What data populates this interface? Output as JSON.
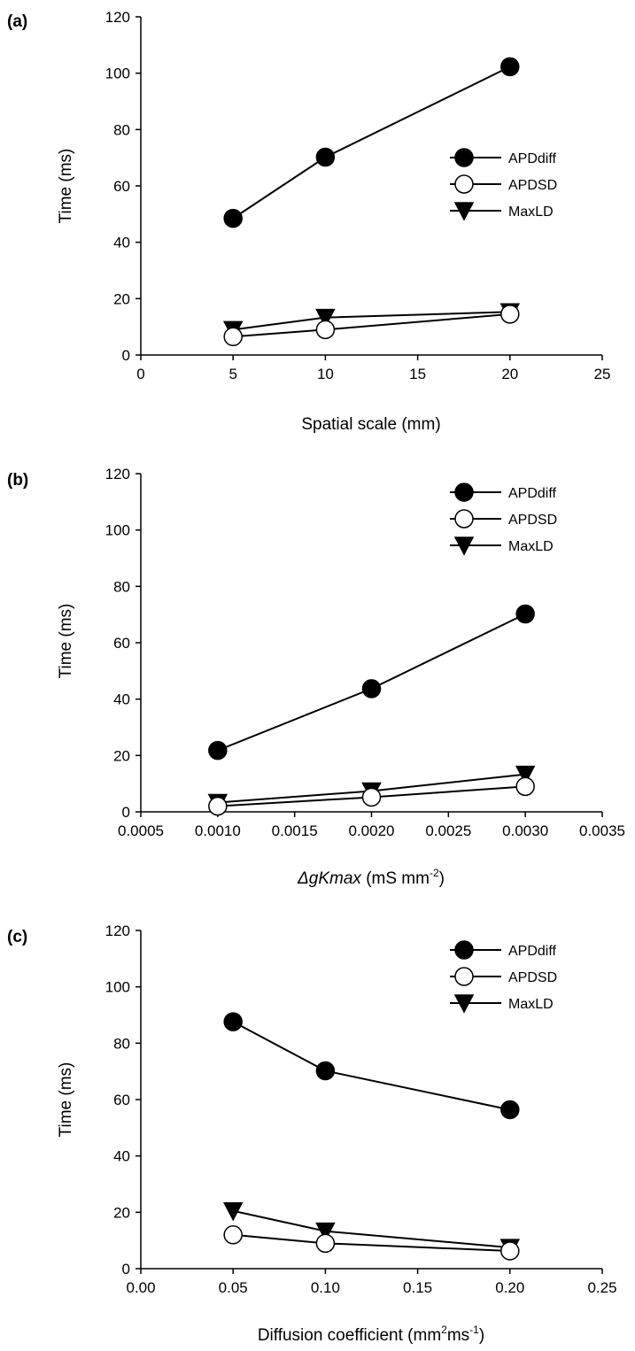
{
  "figure": {
    "background": "#ffffff",
    "ink": "#000000"
  },
  "chart_data": [
    {
      "type": "line",
      "panel_label": "(a)",
      "xlabel": "Spatial scale (mm)",
      "ylabel": "Time (ms)",
      "xlim": [
        0,
        25
      ],
      "ylim": [
        0,
        120
      ],
      "xticks": [
        0,
        5,
        10,
        15,
        20,
        25
      ],
      "xtick_labels": [
        "0",
        "5",
        "10",
        "15",
        "20",
        "25"
      ],
      "yticks": [
        0,
        20,
        40,
        60,
        80,
        100,
        120
      ],
      "ytick_labels": [
        "0",
        "20",
        "40",
        "60",
        "80",
        "100",
        "120"
      ],
      "grid": false,
      "legend_position": "right-middle",
      "series": [
        {
          "name": "APDdiff",
          "marker": "filled-circle",
          "x": [
            5,
            10,
            20
          ],
          "y": [
            48.5,
            70.2,
            102.3
          ]
        },
        {
          "name": "APDSD",
          "marker": "open-circle",
          "x": [
            5,
            10,
            20
          ],
          "y": [
            6.5,
            9.0,
            14.5
          ]
        },
        {
          "name": "MaxLD",
          "marker": "filled-down-triangle",
          "x": [
            5,
            10,
            20
          ],
          "y": [
            9.0,
            13.3,
            15.3
          ]
        }
      ]
    },
    {
      "type": "line",
      "panel_label": "(b)",
      "xlabel_italic": "ΔgKmax",
      "xlabel_unit": " (mS mm",
      "xlabel_sup": "-2",
      "xlabel_close": ")",
      "ylabel": "Time (ms)",
      "xlim": [
        0.0005,
        0.0035
      ],
      "ylim": [
        0,
        120
      ],
      "xticks": [
        0.0005,
        0.001,
        0.0015,
        0.002,
        0.0025,
        0.003,
        0.0035
      ],
      "xtick_labels": [
        "0.0005",
        "0.0010",
        "0.0015",
        "0.0020",
        "0.0025",
        "0.0030",
        "0.0035"
      ],
      "yticks": [
        0,
        20,
        40,
        60,
        80,
        100,
        120
      ],
      "ytick_labels": [
        "0",
        "20",
        "40",
        "60",
        "80",
        "100",
        "120"
      ],
      "grid": false,
      "legend_position": "top-right",
      "series": [
        {
          "name": "APDdiff",
          "marker": "filled-circle",
          "x": [
            0.001,
            0.002,
            0.003
          ],
          "y": [
            21.8,
            43.7,
            70.2
          ]
        },
        {
          "name": "APDSD",
          "marker": "open-circle",
          "x": [
            0.001,
            0.002,
            0.003
          ],
          "y": [
            2.0,
            5.2,
            9.0
          ]
        },
        {
          "name": "MaxLD",
          "marker": "filled-down-triangle",
          "x": [
            0.001,
            0.002,
            0.003
          ],
          "y": [
            3.3,
            7.4,
            13.3
          ]
        }
      ]
    },
    {
      "type": "line",
      "panel_label": "(c)",
      "xlabel_prefix": "Diffusion coefficient (mm",
      "xlabel_sup": "2",
      "xlabel_mid": "ms",
      "xlabel_sup2": "-1",
      "xlabel_close": ")",
      "ylabel": "Time (ms)",
      "xlim": [
        0,
        0.25
      ],
      "ylim": [
        0,
        120
      ],
      "xticks": [
        0,
        0.05,
        0.1,
        0.15,
        0.2,
        0.25
      ],
      "xtick_labels": [
        "0.00",
        "0.05",
        "0.10",
        "0.15",
        "0.20",
        "0.25"
      ],
      "yticks": [
        0,
        20,
        40,
        60,
        80,
        100,
        120
      ],
      "ytick_labels": [
        "0",
        "20",
        "40",
        "60",
        "80",
        "100",
        "120"
      ],
      "grid": false,
      "legend_position": "top-right",
      "series": [
        {
          "name": "APDdiff",
          "marker": "filled-circle",
          "x": [
            0.05,
            0.1,
            0.2
          ],
          "y": [
            87.6,
            70.2,
            56.4
          ]
        },
        {
          "name": "APDSD",
          "marker": "open-circle",
          "x": [
            0.05,
            0.1,
            0.2
          ],
          "y": [
            12.0,
            9.0,
            6.3
          ]
        },
        {
          "name": "MaxLD",
          "marker": "filled-down-triangle",
          "x": [
            0.05,
            0.1,
            0.2
          ],
          "y": [
            20.5,
            13.3,
            7.5
          ]
        }
      ]
    }
  ]
}
